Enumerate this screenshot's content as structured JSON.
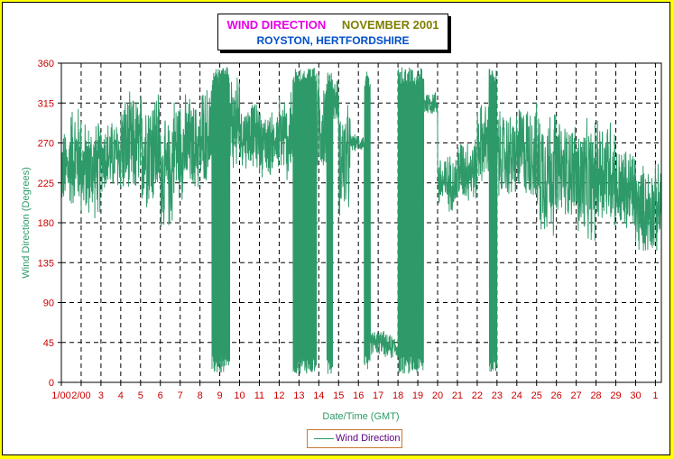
{
  "title": {
    "main": "WIND DIRECTION",
    "period": "NOVEMBER 2001",
    "location": "ROYSTON, HERTFORDSHIRE"
  },
  "legend": {
    "label": "Wind Direction"
  },
  "colors": {
    "series": "#2e9a69",
    "axis_text": "#cc0000",
    "axis_title": "#2e9a69",
    "grid": "#000000",
    "page_background": "#ffff00"
  },
  "chart_data": {
    "type": "line",
    "title": "WIND DIRECTION NOVEMBER 2001",
    "subtitle": "ROYSTON, HERTFORDSHIRE",
    "xlabel": "Date/Time (GMT)",
    "ylabel": "Wind Direction (Degrees)",
    "ylim": [
      0,
      360
    ],
    "yticks": [
      0,
      45,
      90,
      135,
      180,
      225,
      270,
      315,
      360
    ],
    "xlim_days": [
      1,
      31.3
    ],
    "xtick_labels": [
      "1/00",
      "2/00",
      "3",
      "4",
      "5",
      "6",
      "7",
      "8",
      "9",
      "10",
      "11",
      "12",
      "13",
      "14",
      "15",
      "16",
      "17",
      "18",
      "19",
      "20",
      "21",
      "22",
      "23",
      "24",
      "25",
      "26",
      "27",
      "28",
      "29",
      "30",
      "1"
    ],
    "grid": true,
    "legend_position": "bottom",
    "series": [
      {
        "name": "Wind Direction",
        "segments": [
          {
            "from": 1.0,
            "to": 1.4,
            "low": 190,
            "high": 290
          },
          {
            "from": 1.4,
            "to": 2.0,
            "low": 190,
            "high": 320
          },
          {
            "from": 2.0,
            "to": 3.0,
            "low": 180,
            "high": 300
          },
          {
            "from": 3.0,
            "to": 4.0,
            "low": 210,
            "high": 300
          },
          {
            "from": 4.0,
            "to": 5.0,
            "low": 200,
            "high": 330
          },
          {
            "from": 5.0,
            "to": 6.0,
            "low": 190,
            "high": 340
          },
          {
            "from": 6.0,
            "to": 6.6,
            "low": 165,
            "high": 300
          },
          {
            "from": 6.6,
            "to": 7.5,
            "low": 200,
            "high": 330
          },
          {
            "from": 7.5,
            "to": 8.1,
            "low": 210,
            "high": 320
          },
          {
            "from": 8.1,
            "to": 8.6,
            "low": 220,
            "high": 340
          },
          {
            "from": 8.6,
            "to": 9.5,
            "low": 10,
            "high": 355
          },
          {
            "from": 9.5,
            "to": 10.0,
            "low": 230,
            "high": 355
          },
          {
            "from": 10.0,
            "to": 11.0,
            "low": 240,
            "high": 320
          },
          {
            "from": 11.0,
            "to": 12.0,
            "low": 230,
            "high": 310
          },
          {
            "from": 12.0,
            "to": 12.7,
            "low": 220,
            "high": 330
          },
          {
            "from": 12.7,
            "to": 13.9,
            "low": 10,
            "high": 355
          },
          {
            "from": 13.9,
            "to": 14.4,
            "low": 230,
            "high": 355
          },
          {
            "from": 14.4,
            "to": 14.7,
            "low": 10,
            "high": 350
          },
          {
            "from": 14.7,
            "to": 15.0,
            "low": 290,
            "high": 345
          },
          {
            "from": 15.0,
            "to": 15.6,
            "low": 180,
            "high": 320
          },
          {
            "from": 15.6,
            "to": 16.3,
            "low": 260,
            "high": 280
          },
          {
            "from": 16.3,
            "to": 16.6,
            "low": 10,
            "high": 350
          },
          {
            "from": 16.6,
            "to": 17.3,
            "low": 30,
            "high": 60
          },
          {
            "from": 17.3,
            "to": 18.0,
            "low": 25,
            "high": 55
          },
          {
            "from": 18.0,
            "to": 18.4,
            "low": 10,
            "high": 355
          },
          {
            "from": 18.4,
            "to": 19.3,
            "low": 10,
            "high": 355
          },
          {
            "from": 19.3,
            "to": 20.0,
            "low": 300,
            "high": 330
          },
          {
            "from": 20.0,
            "to": 21.0,
            "low": 190,
            "high": 260
          },
          {
            "from": 21.0,
            "to": 22.0,
            "low": 200,
            "high": 280
          },
          {
            "from": 22.0,
            "to": 22.6,
            "low": 220,
            "high": 320
          },
          {
            "from": 22.6,
            "to": 23.0,
            "low": 10,
            "high": 355
          },
          {
            "from": 23.0,
            "to": 24.0,
            "low": 200,
            "high": 310
          },
          {
            "from": 24.0,
            "to": 25.0,
            "low": 200,
            "high": 320
          },
          {
            "from": 25.0,
            "to": 26.0,
            "low": 160,
            "high": 320
          },
          {
            "from": 26.0,
            "to": 27.0,
            "low": 180,
            "high": 300
          },
          {
            "from": 27.0,
            "to": 28.0,
            "low": 150,
            "high": 300
          },
          {
            "from": 28.0,
            "to": 29.0,
            "low": 170,
            "high": 310
          },
          {
            "from": 29.0,
            "to": 30.0,
            "low": 160,
            "high": 270
          },
          {
            "from": 30.0,
            "to": 31.3,
            "low": 140,
            "high": 250
          }
        ]
      }
    ]
  }
}
